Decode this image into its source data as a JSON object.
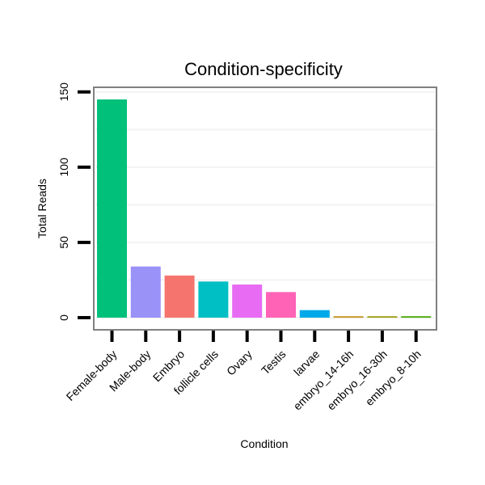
{
  "chart_data": {
    "type": "bar",
    "title": "Condition-specificity",
    "xlabel": "Condition",
    "ylabel": "Total Reads",
    "categories": [
      "Female-body",
      "Male-body",
      "Embryo",
      "follicle cells",
      "Ovary",
      "Testis",
      "larvae",
      "embryo_14-16h",
      "embryo_16-30h",
      "embryo_8-10h"
    ],
    "values": [
      145,
      34,
      28,
      24,
      22,
      17,
      5,
      1,
      1,
      1
    ],
    "colors": [
      "#00C07A",
      "#9A92F7",
      "#F5756E",
      "#00BFC4",
      "#E76BF3",
      "#FF63B6",
      "#00A9E8",
      "#C89B2E",
      "#A4A424",
      "#56AD1A"
    ],
    "yticks": [
      0,
      50,
      100,
      150
    ],
    "ylim": [
      -7,
      152
    ],
    "grid": true,
    "legend": "none"
  }
}
